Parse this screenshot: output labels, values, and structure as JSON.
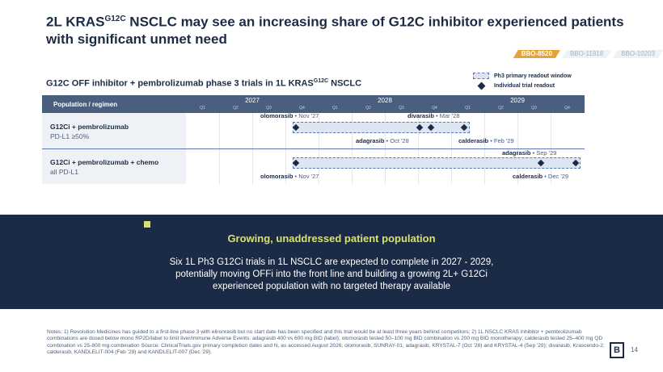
{
  "header": {
    "title_part1": "2L KRAS",
    "title_sup": "G12C",
    "title_part2": " NSCLC may see an increasing share of G12C inhibitor experienced patients with significant unmet need"
  },
  "tabs": [
    {
      "label": "BBO-8520",
      "active": true
    },
    {
      "label": "BBO-11818",
      "active": false
    },
    {
      "label": "BBO-10203",
      "active": false
    }
  ],
  "chart": {
    "subtitle_part1": "G12C OFF inhibitor + pembrolizumab phase 3 trials in 1L KRAS",
    "subtitle_sup": "G12C",
    "subtitle_part2": " NSCLC",
    "legend": {
      "window": "Ph3 primary readout window",
      "readout": "Individual trial readout"
    },
    "column_header": "Population / regimen",
    "years": [
      "2027",
      "2028",
      "2029"
    ],
    "quarters": [
      "Q1",
      "Q2",
      "Q3",
      "Q4"
    ],
    "rows": [
      {
        "name": "G12Ci + pembrolizumab",
        "subgroup": "PD-L1 ≥50%"
      },
      {
        "name": "G12Ci + pembrolizumab + chemo",
        "subgroup": "all PD-L1"
      }
    ]
  },
  "chart_data": {
    "type": "timeline",
    "time_unit": "quarter",
    "rows": [
      {
        "label": "G12Ci + pembrolizumab",
        "sublabel": "PD-L1 ≥50%",
        "window": {
          "start": "2027-Q4",
          "end": "2029-Q1"
        },
        "readouts": [
          {
            "drug": "olomorasib",
            "date": "Nov '27",
            "label_position": "above"
          },
          {
            "drug": "adagrasib",
            "date": "Oct '28",
            "label_position": "below"
          },
          {
            "drug": "divarasib",
            "date": "Mar '28",
            "label_position": "above"
          },
          {
            "drug": "calderasib",
            "date": "Feb '29",
            "label_position": "below"
          }
        ]
      },
      {
        "label": "G12Ci + pembrolizumab + chemo",
        "sublabel": "all PD-L1",
        "window": {
          "start": "2027-Q4",
          "end": "2029-Q4"
        },
        "readouts": [
          {
            "drug": "olomorasib",
            "date": "Nov '27",
            "label_position": "below"
          },
          {
            "drug": "adagrasib",
            "date": "Sep '29",
            "label_position": "above"
          },
          {
            "drug": "calderasib",
            "date": "Dec '29",
            "label_position": "below"
          }
        ]
      }
    ],
    "x_ticks": [
      "2027 Q1",
      "2027 Q2",
      "2027 Q3",
      "2027 Q4",
      "2028 Q1",
      "2028 Q2",
      "2028 Q3",
      "2028 Q4",
      "2029 Q1",
      "2029 Q2",
      "2029 Q3",
      "2029 Q4"
    ]
  },
  "labels": {
    "olomorasib": "olomorasib",
    "divarasib": "divarasib",
    "adagrasib": "adagrasib",
    "calderasib": "calderasib",
    "r1_olo_date": "Nov '27",
    "r1_div_date": "Mar '28",
    "r1_ada_date": "Oct '28",
    "r1_cal_date": "Feb '29",
    "r2_ada_date": "Sep '29",
    "r2_olo_date": "Nov '27",
    "r2_cal_date": "Dec '29",
    "sep": " • "
  },
  "banner": {
    "title": "Growing, unaddressed patient population",
    "text": "Six 1L Ph3 G12Ci trials in 1L NSCLC are expected to complete in 2027 - 2029, potentially moving OFFi into the front line and building a growing 2L+ G12Ci experienced population with no targeted therapy available"
  },
  "notes": "Notes: 1) Revolution Medicines has guided to a first-line phase 3 with elironrasib but no start date has been specified and this trial would be at least three years behind competitors; 2) 1L NSCLC KRAS inhibitor + pembrolizumab combinations are dosed below mono RP2D/label to limit liver/immune Adverse Events: adagrasib 400 vs 600 mg BID (label); olomorasib tested 50–100 mg BID combination vs 200 mg BID monotherapy; calderasib tested 25–400 mg QD combination vs 25-800 mg combination Source: ClinicalTrials.gov primary completion dates and N, as accessed August 2026; olomorasib, SUNRAY-01; adagrasib, KRYSTAL-7 (Oct '28) and KRYSTAL-4 (Sep '29); divarasib, Krascendo-2; calderasib, KANDLELIT-004 (Feb '29) and KANDLELIT-007 (Dec '29).",
  "footer": {
    "logo": "B",
    "page": "14"
  },
  "colors": {
    "navy": "#1c2b45",
    "header_bar": "#4a5f7e",
    "window_fill": "#dde5f2",
    "window_border": "#5b78b5",
    "accent_lime": "#d6e36a",
    "tab_active": "#e7a23b"
  }
}
